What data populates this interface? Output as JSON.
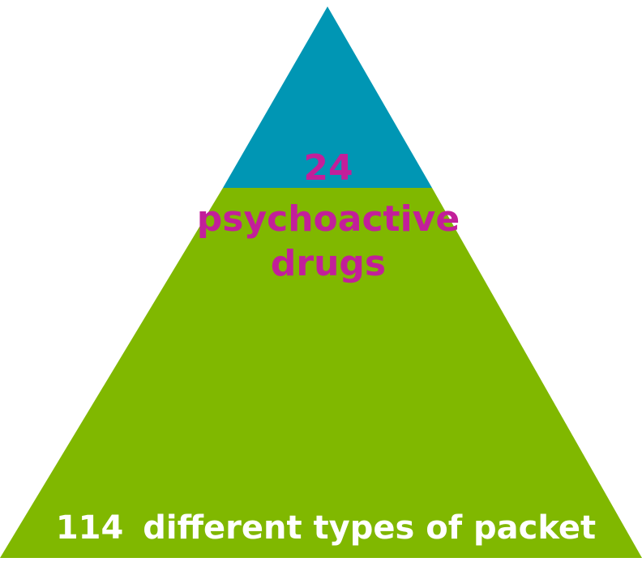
{
  "pyramid": {
    "top_label": {
      "number": "24",
      "line1": "psychoactive",
      "line2": "drugs"
    },
    "bottom_label": {
      "number": "114",
      "text": "different types of packet"
    },
    "colors": {
      "top_section": "#0096B4",
      "bottom_section": "#80B800",
      "top_text": "#C21F9A",
      "bottom_text": "#FFFFFF"
    }
  }
}
